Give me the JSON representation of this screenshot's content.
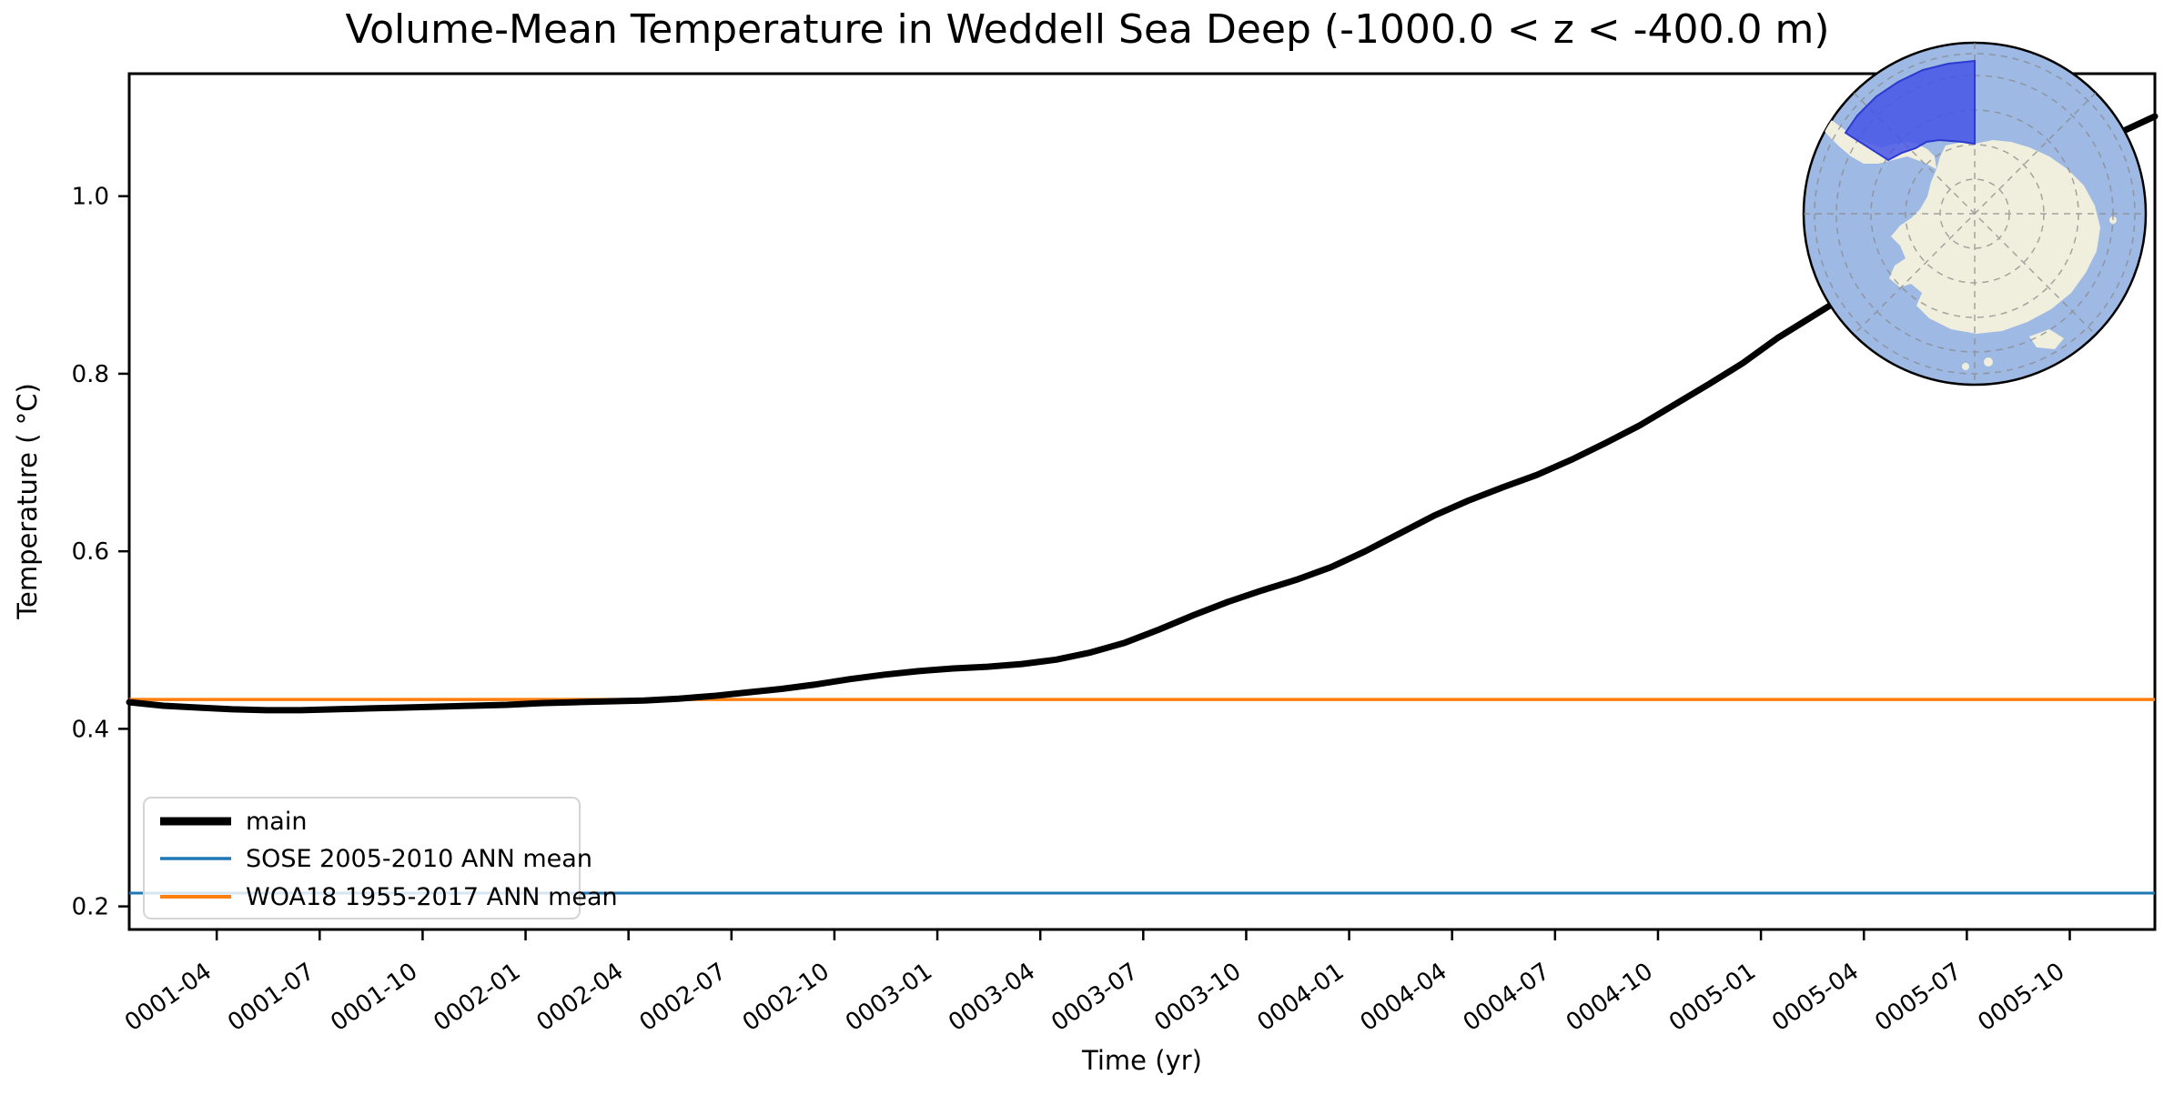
{
  "title": "Volume-Mean Temperature in Weddell Sea Deep (-1000.0 < z < -400.0 m)",
  "colors": {
    "main": "#000000",
    "sose": "#1f77b4",
    "woa": "#ff7f0e",
    "ocean": "#9eb9e3",
    "land": "#f0efdd",
    "region_fill": "#4555e8",
    "region_stroke": "#2d3ad0",
    "grid": "#8a8a8a",
    "legend_border": "#d4d4d4"
  },
  "legend": {
    "items": [
      {
        "label": "main",
        "color": "#000000",
        "sample_width": 8
      },
      {
        "label": "SOSE 2005-2010 ANN mean",
        "color": "#1f77b4",
        "sample_width": 3
      },
      {
        "label": "WOA18 1955-2017 ANN mean",
        "color": "#ff7f0e",
        "sample_width": 3.5
      }
    ],
    "position": "lower left"
  },
  "inset_map": {
    "description": "South polar stereographic map of Antarctica with Weddell Sea region highlighted",
    "region_label": "Weddell Sea region highlight"
  },
  "chart_data": {
    "type": "line",
    "title": "Volume-Mean Temperature in Weddell Sea Deep (-1000.0 < z < -400.0 m)",
    "xlabel": "Time (yr)",
    "ylabel": "Temperature ( °C)",
    "x_start": "0001-01",
    "x_end": "0005-12",
    "x_points": 60,
    "x_tick_labels": [
      "0001-04",
      "0001-07",
      "0001-10",
      "0002-01",
      "0002-04",
      "0002-07",
      "0002-10",
      "0003-01",
      "0003-04",
      "0003-07",
      "0003-10",
      "0004-01",
      "0004-04",
      "0004-07",
      "0004-10",
      "0005-01",
      "0005-04",
      "0005-07",
      "0005-10"
    ],
    "x_tick_month_offsets": [
      2.55,
      5.55,
      8.55,
      11.55,
      14.55,
      17.55,
      20.55,
      23.55,
      26.55,
      29.55,
      32.55,
      35.55,
      38.55,
      41.55,
      44.55,
      47.55,
      50.55,
      53.55,
      56.55
    ],
    "y_ticks": [
      0.2,
      0.4,
      0.6,
      0.8,
      1.0
    ],
    "y_tick_labels": [
      "0.2",
      "0.4",
      "0.6",
      "0.8",
      "1.0"
    ],
    "ylim": [
      0.174,
      1.138
    ],
    "grid": false,
    "legend_position": "lower left",
    "series": [
      {
        "name": "main",
        "color": "#000000",
        "line_width": 7,
        "values": [
          0.43,
          0.426,
          0.424,
          0.422,
          0.421,
          0.421,
          0.422,
          0.423,
          0.424,
          0.425,
          0.426,
          0.427,
          0.429,
          0.43,
          0.431,
          0.432,
          0.434,
          0.437,
          0.441,
          0.445,
          0.45,
          0.456,
          0.461,
          0.465,
          0.468,
          0.47,
          0.473,
          0.478,
          0.486,
          0.497,
          0.512,
          0.528,
          0.543,
          0.556,
          0.568,
          0.582,
          0.6,
          0.62,
          0.64,
          0.657,
          0.672,
          0.686,
          0.703,
          0.722,
          0.742,
          0.765,
          0.788,
          0.812,
          0.84,
          0.864,
          0.888,
          0.912,
          0.936,
          0.96,
          0.983,
          1.006,
          1.028,
          1.052,
          1.072,
          1.09
        ]
      },
      {
        "name": "SOSE 2005-2010 ANN mean",
        "color": "#1f77b4",
        "line_width": 3,
        "constant": 0.215
      },
      {
        "name": "WOA18 1955-2017 ANN mean",
        "color": "#ff7f0e",
        "line_width": 3.5,
        "constant": 0.433
      }
    ]
  }
}
